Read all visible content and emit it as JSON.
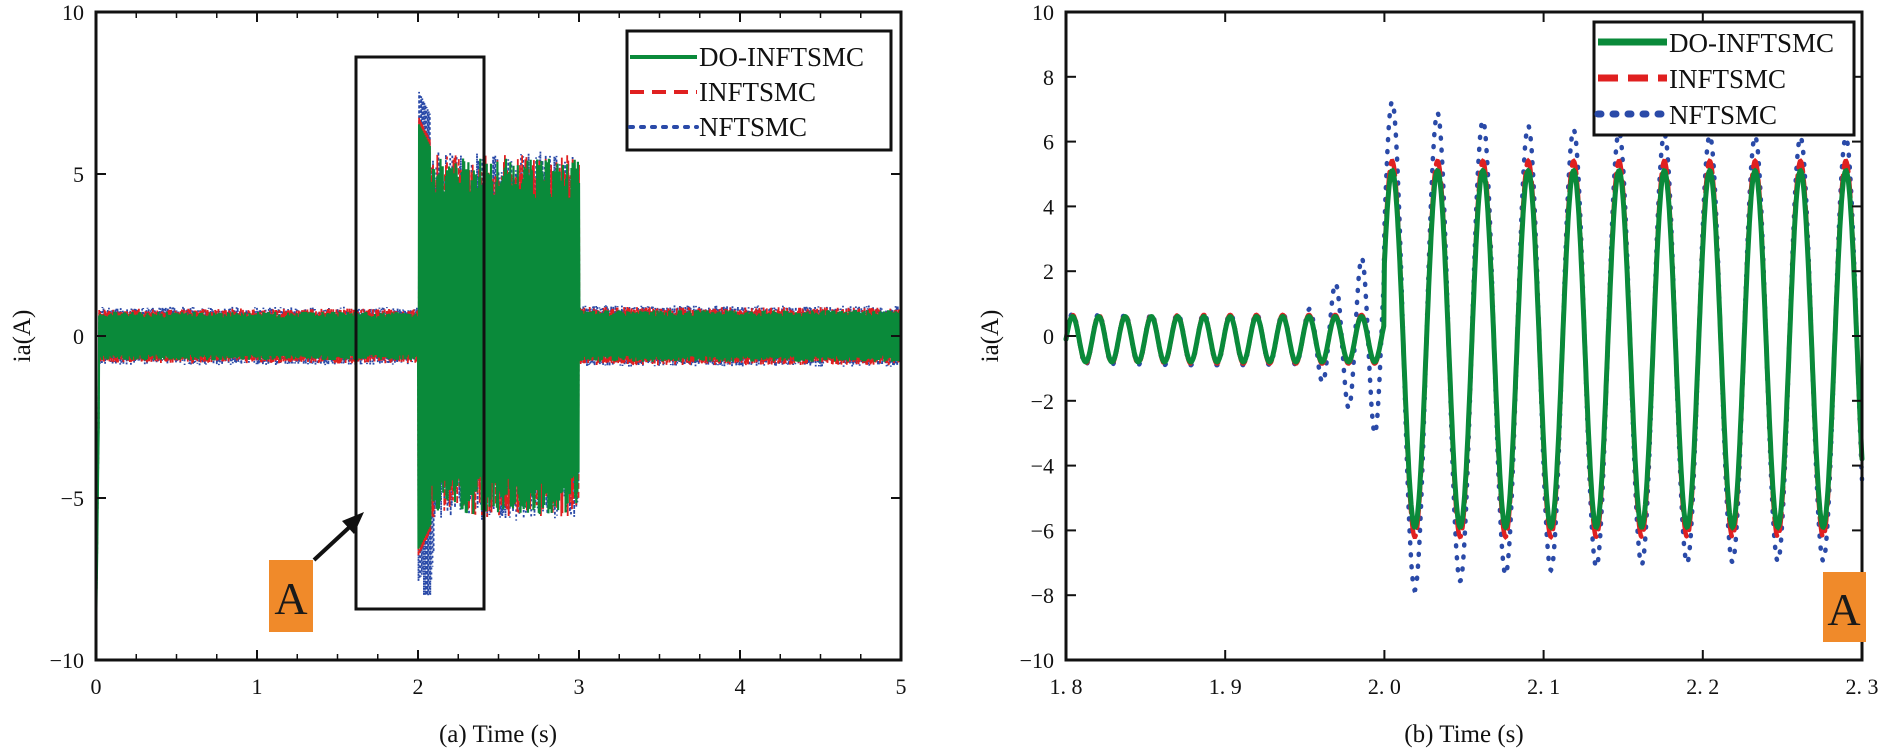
{
  "chart_data": [
    {
      "id": "a",
      "type": "line",
      "xlabel": "(a) Time (s)",
      "ylabel": "ia(A)",
      "xlim": [
        0,
        5
      ],
      "ylim": [
        -10,
        10
      ],
      "xticks": [
        0,
        1,
        2,
        3,
        4,
        5
      ],
      "xtick_labels": [
        "0",
        "1",
        "2",
        "3",
        "4",
        "5"
      ],
      "yticks": [
        -10,
        -5,
        0,
        5,
        10
      ],
      "ytick_labels": [
        "−10",
        "−5",
        "0",
        "5",
        "10"
      ],
      "series": [
        {
          "name": "DO-INFTSMC",
          "color": "#0a8a3a",
          "style": "solid",
          "segments": [
            {
              "t0": 0,
              "t1": 2.0,
              "amplitude": 0.75
            },
            {
              "t0": 2.0,
              "t1": 3.0,
              "amplitude": 5.5,
              "peak": 6.6
            },
            {
              "t0": 3.0,
              "t1": 5.0,
              "amplitude": 0.8
            }
          ]
        },
        {
          "name": "INFTSMC",
          "color": "#e02020",
          "style": "dashed",
          "segments": [
            {
              "t0": 0,
              "t1": 2.0,
              "amplitude": 0.85
            },
            {
              "t0": 2.0,
              "t1": 3.0,
              "amplitude": 5.6,
              "peak": 6.8
            },
            {
              "t0": 3.0,
              "t1": 5.0,
              "amplitude": 0.9
            }
          ]
        },
        {
          "name": "NFTSMC",
          "color": "#2a4aa8",
          "style": "dotted",
          "segments": [
            {
              "t0": 0,
              "t1": 2.0,
              "amplitude": 0.9
            },
            {
              "t0": 2.0,
              "t1": 3.0,
              "amplitude": 5.7,
              "peak": 7.6,
              "trough": -8.0
            },
            {
              "t0": 3.0,
              "t1": 5.0,
              "amplitude": 0.95
            }
          ]
        }
      ],
      "legend": [
        "DO-INFTSMC",
        "INFTSMC",
        "NFTSMC"
      ],
      "legend_position": "top-right",
      "annotation": {
        "label": "A",
        "region_x": [
          1.6,
          2.4
        ],
        "region_y": [
          -8.4,
          8.5
        ]
      }
    },
    {
      "id": "b",
      "type": "line",
      "xlabel": "(b) Time (s)",
      "ylabel": "ia(A)",
      "xlim": [
        1.8,
        2.3
      ],
      "ylim": [
        -10,
        10
      ],
      "xticks": [
        1.8,
        1.9,
        2.0,
        2.1,
        2.2,
        2.3
      ],
      "xtick_labels": [
        "1. 8",
        "1. 9",
        "2. 0",
        "2. 1",
        "2. 2",
        "2. 3"
      ],
      "yticks": [
        -10,
        -8,
        -6,
        -4,
        -2,
        0,
        2,
        4,
        6,
        8,
        10
      ],
      "ytick_labels": [
        "−10",
        "−8",
        "−6",
        "−4",
        "−2",
        "0",
        "2",
        "4",
        "6",
        "8",
        "10"
      ],
      "series": [
        {
          "name": "DO-INFTSMC",
          "color": "#0a8a3a",
          "style": "solid",
          "pre_amplitude": 0.7,
          "post_amplitude": 5.5,
          "period": 0.0285,
          "step_time": 2.0
        },
        {
          "name": "INFTSMC",
          "color": "#e02020",
          "style": "dashed",
          "pre_amplitude": 0.75,
          "post_amplitude": 5.8,
          "period": 0.0285,
          "step_time": 2.0
        },
        {
          "name": "NFTSMC",
          "color": "#2a4aa8",
          "style": "dotted",
          "pre_amplitude": 0.8,
          "post_amplitude": 6.5,
          "period": 0.0285,
          "step_time": 2.0,
          "extremes": {
            "max": 7.4,
            "min": -8.1
          }
        }
      ],
      "legend": [
        "DO-INFTSMC",
        "INFTSMC",
        "NFTSMC"
      ],
      "legend_position": "top-right",
      "annotation": {
        "label": "A",
        "position": "bottom-right"
      }
    }
  ],
  "panels": {
    "a": {
      "xlabel": "(a) Time (s)",
      "ylabel": "ia(A)",
      "callout": "A",
      "legend": [
        "DO-INFTSMC",
        "INFTSMC",
        "NFTSMC"
      ]
    },
    "b": {
      "xlabel": "(b) Time (s)",
      "ylabel": "ia(A)",
      "callout": "A",
      "legend": [
        "DO-INFTSMC",
        "INFTSMC",
        "NFTSMC"
      ]
    }
  },
  "colors": {
    "green": "#0a8a3a",
    "red": "#e02020",
    "blue": "#2a4aa8",
    "callout_bg": "#f08a2a"
  }
}
